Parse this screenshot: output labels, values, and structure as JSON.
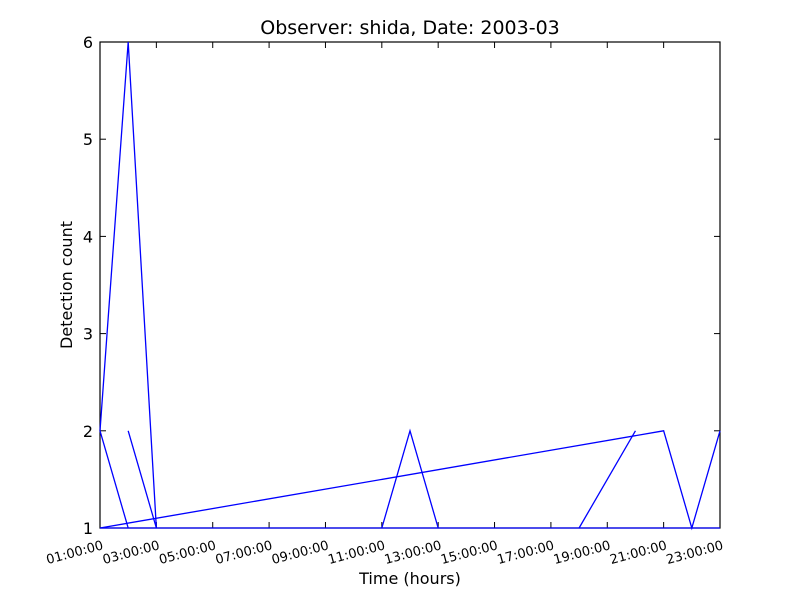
{
  "chart_data": {
    "type": "line",
    "title": "Observer: shida, Date: 2003-03",
    "xlabel": "Time (hours)",
    "ylabel": "Detection count",
    "xlim": [
      "01:00:00",
      "23:00:00"
    ],
    "ylim": [
      1,
      6
    ],
    "x_ticks": [
      "01:00:00",
      "03:00:00",
      "05:00:00",
      "07:00:00",
      "09:00:00",
      "11:00:00",
      "13:00:00",
      "15:00:00",
      "17:00:00",
      "19:00:00",
      "21:00:00",
      "23:00:00"
    ],
    "y_ticks": [
      "1",
      "2",
      "3",
      "4",
      "5",
      "6"
    ],
    "grid": false,
    "line_color": "#0000ff",
    "series": [
      {
        "x": [
          "01:00:00",
          "02:00:00",
          "03:00:00",
          "03:00:00",
          "03:00:00",
          "04:00:00",
          "04:00:00",
          "05:00:00",
          "06:00:00",
          "07:00:00",
          "08:00:00",
          "09:00:00",
          "10:00:00",
          "11:00:00",
          "12:00:00",
          "13:00:00",
          "14:00:00",
          "15:00:00",
          "16:00:00",
          "17:00:00",
          "18:00:00",
          "19:00:00",
          "20:00:00",
          "21:00:00",
          "22:00:00",
          "22:00:00",
          "23:00:00",
          "23:00:00",
          "23:00:00",
          "23:00:00",
          "22:00:00",
          "21:00:00",
          "20:00:00",
          "19:00:00",
          "18:00:00",
          "17:00:00",
          "16:00:00",
          "15:00:00",
          "14:00:00",
          "13:00:00",
          "12:00:00",
          "11:00:00",
          "10:00:00",
          "09:00:00",
          "08:00:00",
          "07:00:00",
          "06:00:00",
          "05:00:00",
          "04:00:00",
          "03:00:00",
          "02:00:00",
          "02:00:00"
        ],
        "y": [
          1,
          1,
          1,
          1,
          1,
          1,
          1,
          1,
          1,
          1,
          1,
          1,
          1,
          1,
          1,
          1,
          1,
          1,
          1,
          1,
          1,
          1,
          1,
          1,
          1,
          1,
          2,
          1,
          2,
          1,
          1,
          1,
          1,
          1,
          1,
          1,
          1,
          1,
          1,
          1,
          1,
          1,
          1,
          1,
          1,
          1,
          1,
          1,
          1,
          1,
          1,
          1
        ]
      }
    ],
    "path_points": [
      [
        "02:00:00",
        2
      ],
      [
        "03:00:00",
        6
      ],
      [
        "04:00:00",
        1
      ],
      [
        "23:00:00",
        1
      ],
      [
        "02:00:00",
        1
      ],
      [
        "01:00:00",
        2
      ]
    ]
  }
}
